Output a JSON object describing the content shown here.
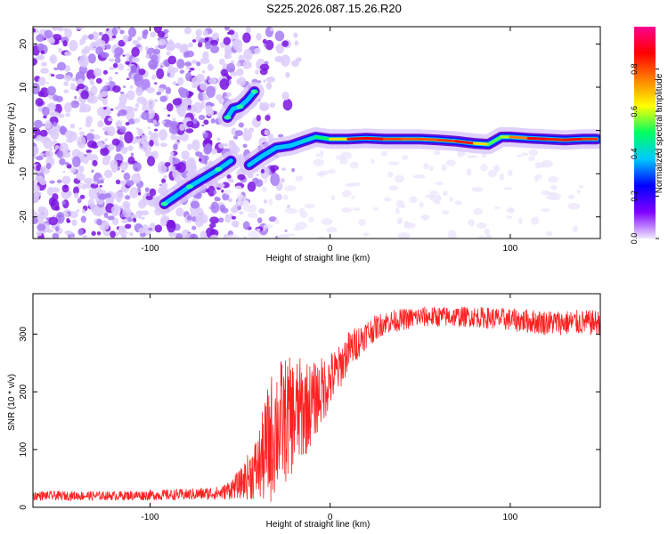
{
  "title": "S225.2026.087.15.26.R20",
  "chart_data": [
    {
      "type": "heatmap",
      "name": "spectrogram",
      "xlabel": "Height of straight line (km)",
      "ylabel": "Frequency (Hz)",
      "xlim": [
        -165,
        150
      ],
      "ylim": [
        -25,
        24
      ],
      "xticks": [
        -100,
        0,
        100
      ],
      "yticks": [
        -20,
        -10,
        0,
        10,
        20
      ],
      "colorbar": {
        "label": "Normalized spectral amplitude",
        "range": [
          0,
          1
        ],
        "ticks": [
          "0.0",
          "0.2",
          "0.4",
          "0.6",
          "0.8"
        ],
        "colors": [
          "#f0e8ff",
          "#8000ff",
          "#0000ff",
          "#00c8ff",
          "#00ff60",
          "#ffff00",
          "#ff8000",
          "#ff0000",
          "#ff0090"
        ]
      },
      "ridge_segments": [
        {
          "name": "lower-branch",
          "x": [
            -92,
            -85,
            -78,
            -70,
            -62,
            -55
          ],
          "y": [
            -17,
            -15,
            -13,
            -11,
            -9,
            -7
          ]
        },
        {
          "name": "upper-branch",
          "x": [
            -57,
            -54,
            -50,
            -46,
            -42
          ],
          "y": [
            3,
            5,
            5.5,
            7,
            9
          ]
        },
        {
          "name": "main-ridge",
          "x": [
            -45,
            -38,
            -30,
            -22,
            -15,
            -8,
            0,
            10,
            20,
            30,
            40,
            50,
            60,
            70,
            80,
            88,
            95,
            100,
            110,
            120,
            130,
            140,
            148
          ],
          "y": [
            -8,
            -6,
            -4,
            -3.5,
            -2.5,
            -1.5,
            -2,
            -2,
            -1.8,
            -2,
            -2,
            -2,
            -2.2,
            -2.5,
            -3,
            -3.2,
            -1.5,
            -1.5,
            -1.8,
            -2,
            -2.2,
            -2,
            -2
          ],
          "amplitude": [
            0.2,
            0.25,
            0.3,
            0.35,
            0.4,
            0.5,
            0.6,
            0.85,
            0.9,
            0.88,
            0.8,
            0.85,
            0.8,
            0.88,
            0.85,
            0.6,
            0.6,
            0.7,
            0.9,
            0.88,
            0.85,
            0.9,
            0.8
          ]
        }
      ]
    },
    {
      "type": "line",
      "name": "snr",
      "xlabel": "Height of straight line (km)",
      "ylabel": "SNR (10 * v/v)",
      "xlim": [
        -165,
        150
      ],
      "ylim": [
        0,
        370
      ],
      "xticks": [
        -100,
        0,
        100
      ],
      "yticks": [
        0,
        100,
        200,
        300
      ],
      "color": "#ff2020",
      "envelope": {
        "x": [
          -165,
          -120,
          -80,
          -60,
          -50,
          -40,
          -34,
          -30,
          -25,
          -20,
          -15,
          -10,
          -5,
          0,
          5,
          10,
          20,
          30,
          50,
          80,
          100,
          120,
          150
        ],
        "mean": [
          20,
          20,
          22,
          25,
          40,
          70,
          110,
          140,
          150,
          160,
          170,
          180,
          200,
          220,
          240,
          270,
          300,
          320,
          330,
          330,
          325,
          320,
          320
        ],
        "spread": [
          8,
          8,
          10,
          12,
          25,
          60,
          110,
          120,
          110,
          100,
          90,
          70,
          60,
          50,
          40,
          35,
          25,
          20,
          18,
          18,
          20,
          22,
          22
        ]
      }
    }
  ]
}
